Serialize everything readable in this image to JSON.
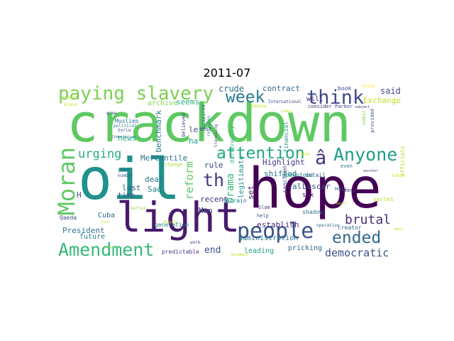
{
  "title": "2011-07",
  "palette": {
    "dark_purple": "#440154",
    "purple": "#482878",
    "indigo": "#3e4989",
    "blue": "#31688e",
    "teal": "#26828e",
    "green_teal": "#1f9e89",
    "green": "#35b779",
    "light_green": "#6ece58",
    "lime": "#b5de2b",
    "yellow": "#fde725"
  },
  "words": [
    {
      "text": "crackdown",
      "color": "#5ec962"
    },
    {
      "text": "oil",
      "color": "#21918c"
    },
    {
      "text": "hope",
      "color": "#440154"
    },
    {
      "text": "light",
      "color": "#481a6c"
    },
    {
      "text": "paying slavery",
      "color": "#7ad151"
    },
    {
      "text": "people",
      "color": "#3b528b"
    },
    {
      "text": "Moran",
      "color": "#5ec962"
    },
    {
      "text": "Amendment",
      "color": "#35b779"
    },
    {
      "text": "think",
      "color": "#3e4989"
    },
    {
      "text": "Anyone",
      "color": "#1f9e89"
    },
    {
      "text": "attention",
      "color": "#22a884"
    },
    {
      "text": "week",
      "color": "#2a788e"
    },
    {
      "text": "ended",
      "color": "#31688e"
    },
    {
      "text": "th",
      "color": "#443983"
    },
    {
      "text": "â",
      "color": "#46327e"
    },
    {
      "text": "urging",
      "color": "#2ab07f"
    },
    {
      "text": "brutal",
      "color": "#472d7b"
    },
    {
      "text": "democratic",
      "color": "#3b528b"
    },
    {
      "text": "reform",
      "color": "#5ec962"
    },
    {
      "text": "Drama",
      "color": "#35b779"
    },
    {
      "text": "crude",
      "color": "#2c728e"
    },
    {
      "text": "contract",
      "color": "#31688e"
    },
    {
      "text": "said",
      "color": "#3e4989"
    },
    {
      "text": "Exchange",
      "color": "#c2df23"
    },
    {
      "text": "seems",
      "color": "#2ab07f"
    },
    {
      "text": "archive",
      "color": "#86d549"
    },
    {
      "text": "benchmark",
      "color": "#287c8e"
    },
    {
      "text": "Mercantile",
      "color": "#2c728e"
    },
    {
      "text": "Highlight",
      "color": "#443983"
    },
    {
      "text": "legitimate",
      "color": "#21918c"
    },
    {
      "text": "al",
      "color": "#31688e"
    },
    {
      "text": "Lascar",
      "color": "#3e4989"
    },
    {
      "text": "set",
      "color": "#481f70"
    },
    {
      "text": "shifted",
      "color": "#2a788e"
    },
    {
      "text": "rule",
      "color": "#414487"
    },
    {
      "text": "le",
      "color": "#3b528b"
    },
    {
      "text": "ha",
      "color": "#1fa188"
    },
    {
      "text": "news",
      "color": "#22a884"
    },
    {
      "text": "lost",
      "color": "#39568c"
    },
    {
      "text": "deal",
      "color": "#2e6e8e"
    },
    {
      "text": "Sad",
      "color": "#26828e"
    },
    {
      "text": "time",
      "color": "#3b528b"
    },
    {
      "text": "recent",
      "color": "#46337e"
    },
    {
      "text": "Man",
      "color": "#3e4989"
    },
    {
      "text": "Cuba",
      "color": "#31688e"
    },
    {
      "text": "future",
      "color": "#2a788e"
    },
    {
      "text": "President",
      "color": "#2c728e"
    },
    {
      "text": "end",
      "color": "#3b528b"
    },
    {
      "text": "establish",
      "color": "#482878"
    },
    {
      "text": "administration",
      "color": "#2a788e"
    },
    {
      "text": "leading",
      "color": "#1f9e89"
    },
    {
      "text": "pricking",
      "color": "#31688e"
    },
    {
      "text": "H",
      "color": "#3e4989"
    },
    {
      "text": "Qaeda",
      "color": "#3b528b"
    },
    {
      "text": "Muslims",
      "color": "#2c728e"
    },
    {
      "text": "generation",
      "color": "#26828e"
    },
    {
      "text": "predictable",
      "color": "#443983"
    },
    {
      "text": "will",
      "color": "#482878"
    },
    {
      "text": "book",
      "color": "#3e4989"
    },
    {
      "text": "financial",
      "color": "#21918c"
    },
    {
      "text": "six",
      "color": "#471063"
    },
    {
      "text": "sanction",
      "color": "#414487"
    },
    {
      "text": "series",
      "color": "#b8de29"
    },
    {
      "text": "creator",
      "color": "#31688e"
    },
    {
      "text": "help",
      "color": "#3b528b"
    },
    {
      "text": "shadow",
      "color": "#2c728e"
    },
    {
      "text": "Slam",
      "color": "#443983"
    },
    {
      "text": "terrain",
      "color": "#2a788e"
    },
    {
      "text": "momentous",
      "color": "#26828e"
    },
    {
      "text": "detail",
      "color": "#31688e"
    },
    {
      "text": "change",
      "color": "#a5db36"
    },
    {
      "text": "Parker",
      "color": "#3e4989"
    },
    {
      "text": "comic",
      "color": "#7ad151"
    },
    {
      "text": "provided",
      "color": "#3b528b"
    },
    {
      "text": "officials",
      "color": "#b5de2b"
    },
    {
      "text": "many",
      "color": "#443983"
    },
    {
      "text": "Holy",
      "color": "#31688e"
    },
    {
      "text": "even",
      "color": "#2a788e"
    },
    {
      "text": "International",
      "color": "#3e4989"
    },
    {
      "text": "consider",
      "color": "#472d7b"
    },
    {
      "text": "believed",
      "color": "#443983"
    },
    {
      "text": "inspired",
      "color": "#31688e"
    },
    {
      "text": "Syria",
      "color": "#3b528b"
    },
    {
      "text": "political",
      "color": "#2c728e"
    },
    {
      "text": "grew",
      "color": "#3e4989"
    },
    {
      "text": "West",
      "color": "#414487"
    },
    {
      "text": "number",
      "color": "#3b528b"
    },
    {
      "text": "great",
      "color": "#2c728e"
    },
    {
      "text": "work",
      "color": "#443983"
    },
    {
      "text": "operative",
      "color": "#31688e"
    },
    {
      "text": "differently",
      "color": "#35b779"
    },
    {
      "text": "religion",
      "color": "#26828e"
    },
    {
      "text": "traveling",
      "color": "#3e4989"
    },
    {
      "text": "Competition",
      "color": "#2a788e"
    },
    {
      "text": "subject",
      "color": "#482878"
    },
    {
      "text": "issue",
      "color": "#fde725"
    },
    {
      "text": "impose",
      "color": "#d2e21b"
    },
    {
      "text": "place",
      "color": "#c8e020"
    },
    {
      "text": "tragic",
      "color": "#addc30"
    },
    {
      "text": "later",
      "color": "#dde318"
    },
    {
      "text": "comes",
      "color": "#cae11f"
    },
    {
      "text": "despite",
      "color": "#bade28"
    },
    {
      "text": "better",
      "color": "#a0da39"
    },
    {
      "text": "taken",
      "color": "#d8e219"
    },
    {
      "text": "another",
      "color": "#3b528b"
    },
    {
      "text": "bears",
      "color": "#b2dd2d"
    },
    {
      "text": "movement",
      "color": "#c0df25"
    },
    {
      "text": "data",
      "color": "#bfdf25"
    },
    {
      "text": "rare",
      "color": "#cde11d"
    },
    {
      "text": "front",
      "color": "#9bd93c"
    }
  ]
}
